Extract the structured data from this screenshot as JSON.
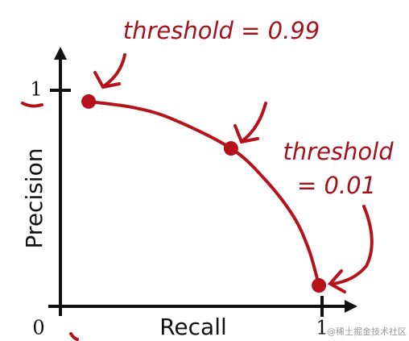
{
  "chart_data": {
    "type": "line",
    "xlabel": "Recall",
    "ylabel": "Precision",
    "annotations": [
      "threshold = 0.99",
      "threshold",
      "= 0.01"
    ],
    "watermark": "@稀土掘金技术社区",
    "x": [
      0.108,
      0.28,
      0.43,
      0.652,
      0.78,
      0.89,
      0.95,
      0.988
    ],
    "series": [
      {
        "color": "#b5121b",
        "values": [
          0.948,
          0.92,
          0.866,
          0.731,
          0.59,
          0.418,
          0.261,
          0.097
        ]
      },
      {
        "color": "#b5121b",
        "markers": true,
        "values": [
          0.948,
          null,
          null,
          0.731,
          null,
          null,
          null,
          0.097
        ]
      }
    ],
    "xlim": [
      0,
      1.12
    ],
    "ylim": [
      0,
      1.2
    ],
    "xticks": [
      0,
      1
    ],
    "yticks": [
      1
    ],
    "grid": false
  }
}
